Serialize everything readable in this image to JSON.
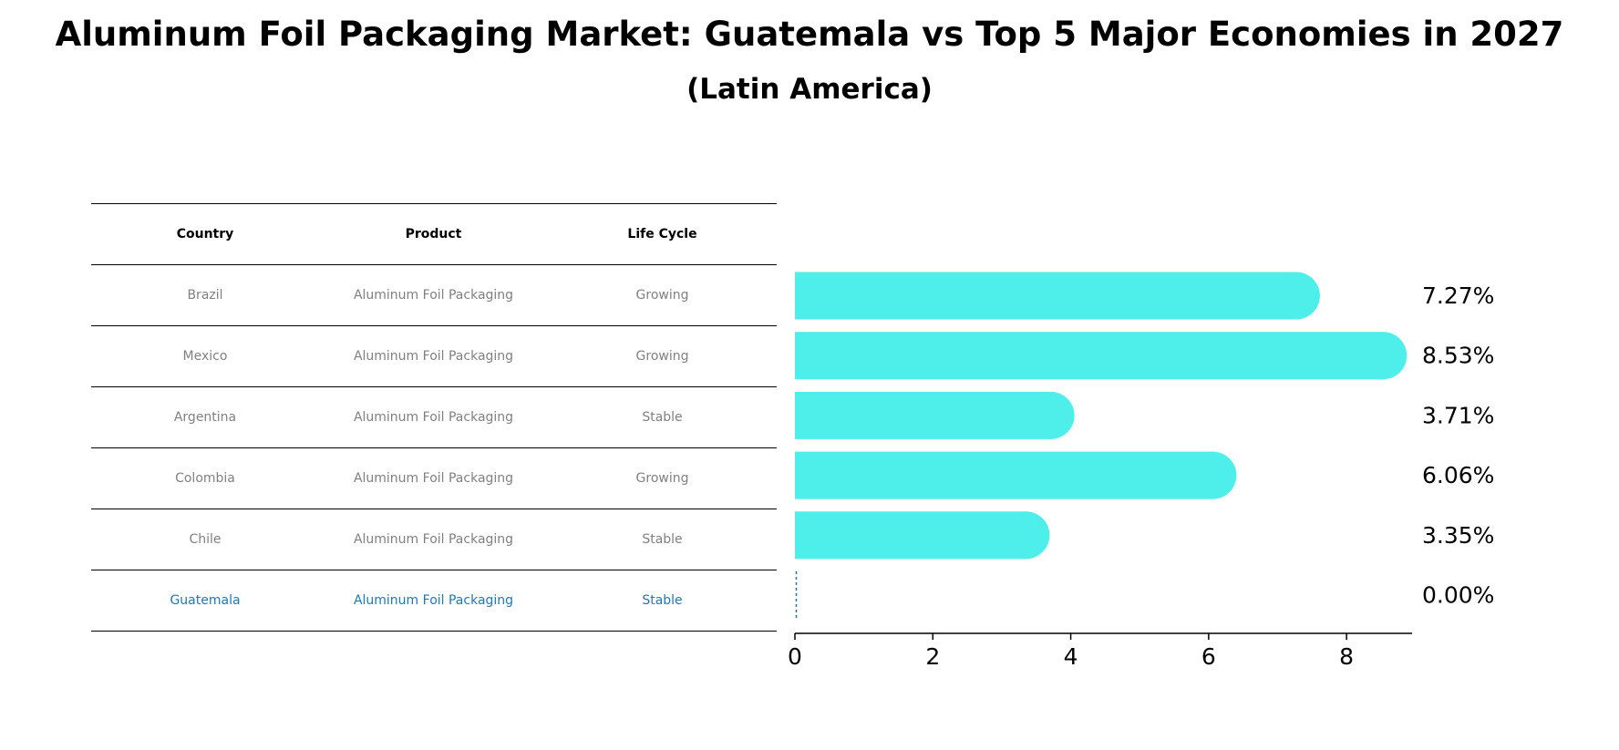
{
  "title": "Aluminum Foil Packaging Market: Guatemala vs Top 5 Major Economies in 2027",
  "subtitle": "(Latin America)",
  "table": {
    "headers": [
      "Country",
      "Product",
      "Life Cycle"
    ],
    "rows": [
      {
        "country": "Brazil",
        "product": "Aluminum Foil Packaging",
        "life_cycle": "Growing",
        "highlight": false
      },
      {
        "country": "Mexico",
        "product": "Aluminum Foil Packaging",
        "life_cycle": "Growing",
        "highlight": false
      },
      {
        "country": "Argentina",
        "product": "Aluminum Foil Packaging",
        "life_cycle": "Stable",
        "highlight": false
      },
      {
        "country": "Colombia",
        "product": "Aluminum Foil Packaging",
        "life_cycle": "Growing",
        "highlight": false
      },
      {
        "country": "Chile",
        "product": "Aluminum Foil Packaging",
        "life_cycle": "Stable",
        "highlight": false
      },
      {
        "country": "Guatemala",
        "product": "Aluminum Foil Packaging",
        "life_cycle": "Stable",
        "highlight": true
      }
    ]
  },
  "chart_data": {
    "type": "bar",
    "orientation": "horizontal",
    "categories": [
      "Brazil",
      "Mexico",
      "Argentina",
      "Colombia",
      "Chile",
      "Guatemala"
    ],
    "values": [
      7.27,
      8.53,
      3.71,
      6.06,
      3.35,
      0.0
    ],
    "value_labels": [
      "7.27%",
      "8.53%",
      "3.71%",
      "6.06%",
      "3.35%",
      "0.00%"
    ],
    "xlim": [
      0,
      8.95
    ],
    "xticks": [
      0,
      2,
      4,
      6,
      8
    ],
    "xtick_labels": [
      "0",
      "2",
      "4",
      "6",
      "8"
    ],
    "xlabel": "",
    "ylabel": "",
    "grid": false,
    "bar_style": "rounded-end",
    "zero_value_style": "dashed-line",
    "colors": {
      "bar": "#4eeeea",
      "highlight": "#1f77b4",
      "table_text": "#808080",
      "axis": "#000000"
    }
  }
}
